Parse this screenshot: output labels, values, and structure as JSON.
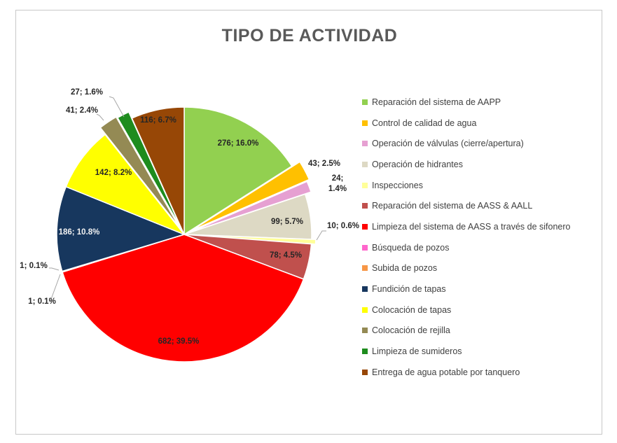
{
  "chart_data": {
    "type": "pie",
    "title": "TIPO DE ACTIVIDAD",
    "slices": [
      {
        "name": "Reparación del sistema de AAPP",
        "value": 276,
        "percent": "16.0%",
        "label": "276; 16.0%",
        "color": "#92d050"
      },
      {
        "name": "Control de calidad de agua",
        "value": 43,
        "percent": "2.5%",
        "label": "43; 2.5%",
        "color": "#ffc000"
      },
      {
        "name": "Operación de válvulas (cierre/apertura)",
        "value": 24,
        "percent": "1.4%",
        "label": "24; 1.4%",
        "color": "#e6a0d2"
      },
      {
        "name": "Operación de hidrantes",
        "value": 99,
        "percent": "5.7%",
        "label": "99; 5.7%",
        "color": "#ddd9c4"
      },
      {
        "name": "Inspecciones",
        "value": 10,
        "percent": "0.6%",
        "label": "10; 0.6%",
        "color": "#ffff99"
      },
      {
        "name": "Reparación del sistema de AASS & AALL",
        "value": 78,
        "percent": "4.5%",
        "label": "78; 4.5%",
        "color": "#c0504d"
      },
      {
        "name": "Limpieza del sistema de AASS a través de sifonero",
        "value": 682,
        "percent": "39.5%",
        "label": "682; 39.5%",
        "color": "#ff0000"
      },
      {
        "name": "Búsqueda de pozos",
        "value": 1,
        "percent": "0.1%",
        "label": "1; 0.1%",
        "color": "#ff66cc"
      },
      {
        "name": "Subida de pozos",
        "value": 1,
        "percent": "0.1%",
        "label": "1; 0.1%",
        "color": "#f79646"
      },
      {
        "name": "Fundición de tapas",
        "value": 186,
        "percent": "10.8%",
        "label": "186; 10.8%",
        "color": "#17375e"
      },
      {
        "name": "Colocación de tapas",
        "value": 142,
        "percent": "8.2%",
        "label": "142; 8.2%",
        "color": "#ffff00"
      },
      {
        "name": "Colocación de rejilla",
        "value": 41,
        "percent": "2.4%",
        "label": "41; 2.4%",
        "color": "#948a54"
      },
      {
        "name": "Limpieza de sumideros",
        "value": 27,
        "percent": "1.6%",
        "label": "27; 1.6%",
        "color": "#1e8c1e"
      },
      {
        "name": "Entrega de agua potable por tanquero",
        "value": 116,
        "percent": "6.7%",
        "label": "116; 6.7%",
        "color": "#974706"
      }
    ],
    "legend_position": "right"
  }
}
